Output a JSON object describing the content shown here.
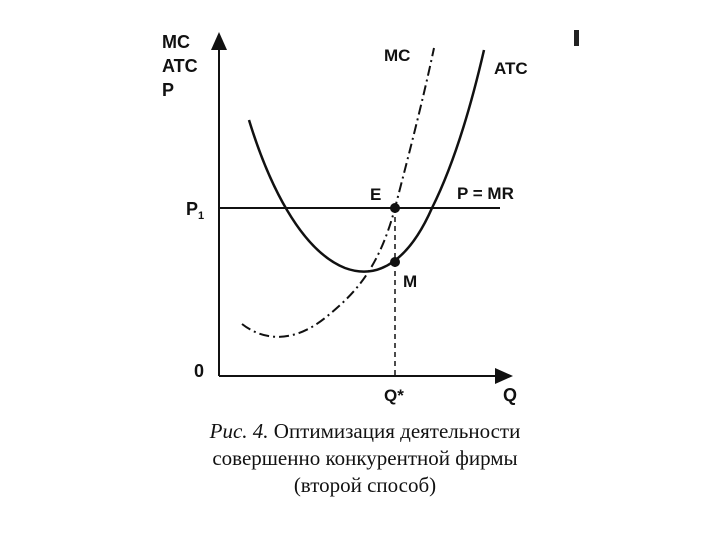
{
  "chart_data": {
    "type": "line",
    "y_axis_labels": [
      "MC",
      "ATC",
      "P"
    ],
    "x_axis_label": "Q",
    "origin_label": "0",
    "y_tick_label": "P",
    "y_tick_subscript": "1",
    "x_tick_label": "Q*",
    "series": [
      {
        "name": "MC",
        "style": "dash-dot"
      },
      {
        "name": "ATC",
        "style": "solid"
      }
    ],
    "line_label": "P = MR",
    "points": [
      {
        "name": "E"
      },
      {
        "name": "M"
      }
    ]
  },
  "caption": {
    "figure_number": "Рис. 4.",
    "line1": "Оптимизация деятельности",
    "line2": "совершенно конкурентной фирмы",
    "line3": "(второй способ)"
  }
}
